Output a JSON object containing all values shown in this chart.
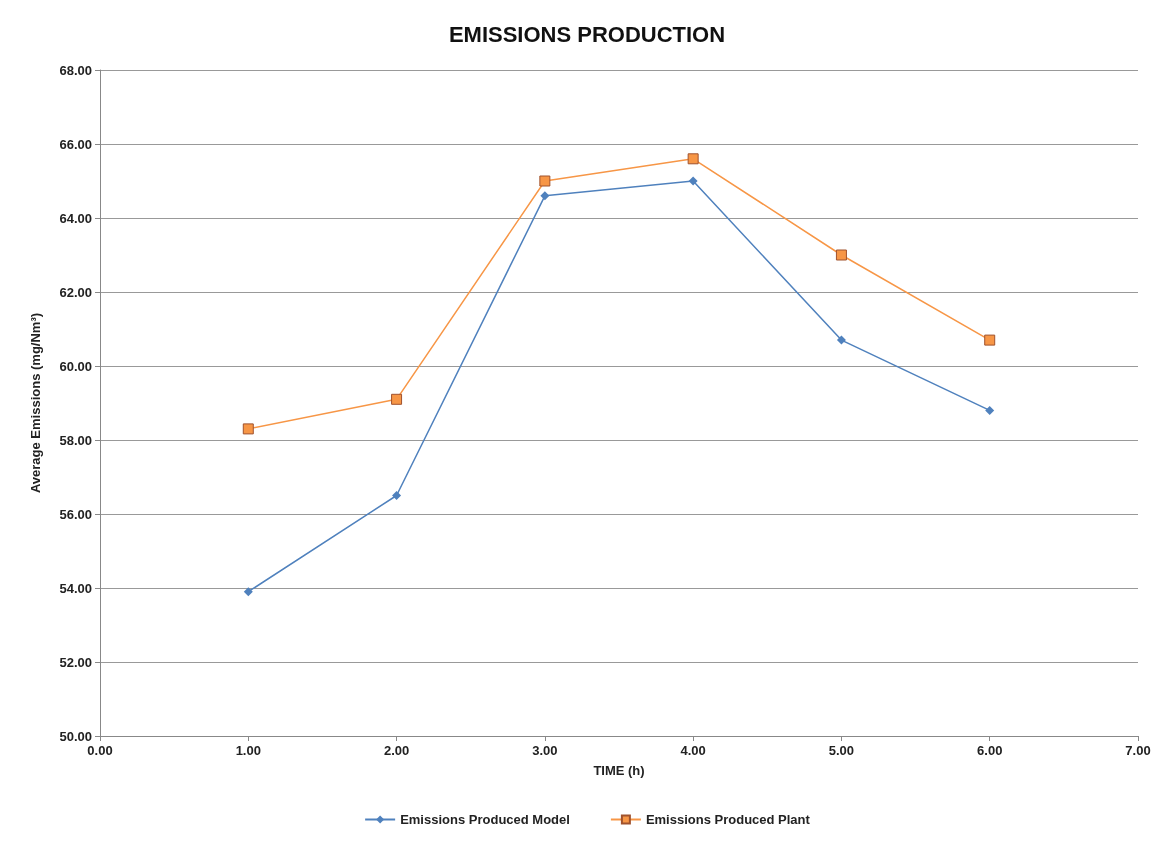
{
  "chart_data": {
    "type": "line",
    "title": "EMISSIONS PRODUCTION",
    "xlabel": "TIME (h)",
    "ylabel": "Average Emissions (mg/Nm³)",
    "x": [
      1,
      2,
      3,
      4,
      5,
      6
    ],
    "series": [
      {
        "name": "Emissions Produced Model",
        "color": "#4f81bd",
        "marker": "diamond",
        "values": [
          53.9,
          56.5,
          64.6,
          65.0,
          60.7,
          58.8
        ]
      },
      {
        "name": "Emissions Produced Plant",
        "color": "#f79646",
        "marker": "square",
        "values": [
          58.3,
          59.1,
          65.0,
          65.6,
          63.0,
          60.7
        ]
      }
    ],
    "xlim": [
      0,
      7
    ],
    "xticks": [
      {
        "value": 0,
        "label": "0.00"
      },
      {
        "value": 1,
        "label": "1.00"
      },
      {
        "value": 2,
        "label": "2.00"
      },
      {
        "value": 3,
        "label": "3.00"
      },
      {
        "value": 4,
        "label": "4.00"
      },
      {
        "value": 5,
        "label": "5.00"
      },
      {
        "value": 6,
        "label": "6.00"
      },
      {
        "value": 7,
        "label": "7.00"
      }
    ],
    "ylim": [
      50,
      68
    ],
    "yticks": [
      {
        "value": 50,
        "label": "50.00"
      },
      {
        "value": 52,
        "label": "52.00"
      },
      {
        "value": 54,
        "label": "54.00"
      },
      {
        "value": 56,
        "label": "56.00"
      },
      {
        "value": 58,
        "label": "58.00"
      },
      {
        "value": 60,
        "label": "60.00"
      },
      {
        "value": 62,
        "label": "62.00"
      },
      {
        "value": 64,
        "label": "64.00"
      },
      {
        "value": 66,
        "label": "66.00"
      },
      {
        "value": 68,
        "label": "68.00"
      }
    ],
    "grid": "y",
    "legend": "bottom",
    "line_style": "solid"
  }
}
